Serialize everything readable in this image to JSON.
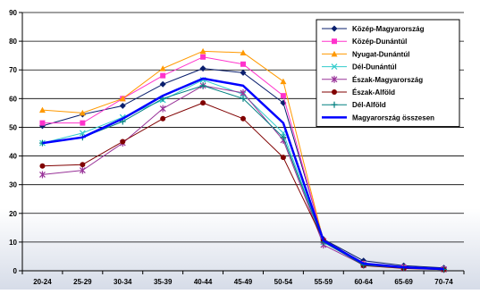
{
  "chart_data": {
    "type": "line",
    "categories": [
      "20-24",
      "25-29",
      "30-34",
      "35-39",
      "40-44",
      "45-49",
      "50-54",
      "55-59",
      "60-64",
      "65-69",
      "70-74"
    ],
    "ylim": [
      0,
      90
    ],
    "yticks": [
      0,
      10,
      20,
      30,
      40,
      50,
      60,
      70,
      80,
      90
    ],
    "grid": true,
    "legend_position": "top-right",
    "series": [
      {
        "name": "Közép-Magyarország",
        "color": "#0a1f6e",
        "marker": "diamond",
        "width": 1,
        "values": [
          50.5,
          54.5,
          57.5,
          65.0,
          70.5,
          69.0,
          58.5,
          11.0,
          3.5,
          1.8,
          1.0
        ]
      },
      {
        "name": "Közép-Dunántúl",
        "color": "#ff33cc",
        "marker": "square",
        "width": 1,
        "values": [
          51.5,
          51.5,
          60.0,
          68.0,
          74.5,
          72.0,
          61.0,
          10.5,
          2.5,
          1.2,
          0.6
        ]
      },
      {
        "name": "Nyugat-Dunántúl",
        "color": "#ff9900",
        "marker": "triangle",
        "width": 1,
        "values": [
          56.0,
          55.0,
          60.0,
          70.5,
          76.5,
          76.0,
          66.0,
          10.5,
          2.5,
          1.2,
          0.6
        ]
      },
      {
        "name": "Dél-Dunántúl",
        "color": "#33cccc",
        "marker": "x",
        "width": 1,
        "values": [
          44.5,
          48.0,
          53.5,
          59.5,
          66.5,
          61.5,
          48.0,
          10.0,
          2.3,
          1.0,
          0.5
        ]
      },
      {
        "name": "Észak-Magyarország",
        "color": "#993399",
        "marker": "star",
        "width": 1,
        "values": [
          33.5,
          35.0,
          44.5,
          56.5,
          64.5,
          62.0,
          45.5,
          9.0,
          2.0,
          1.0,
          0.5
        ]
      },
      {
        "name": "Észak-Alföld",
        "color": "#800000",
        "marker": "circle",
        "width": 1,
        "values": [
          36.5,
          37.0,
          45.0,
          53.0,
          58.5,
          53.0,
          39.5,
          10.5,
          1.8,
          0.8,
          0.4
        ]
      },
      {
        "name": "Dél-Alföld",
        "color": "#008080",
        "marker": "plus",
        "width": 1,
        "values": [
          44.5,
          46.5,
          52.0,
          60.0,
          64.5,
          60.0,
          46.5,
          10.0,
          2.0,
          1.0,
          0.5
        ]
      },
      {
        "name": "Magyarország összesen",
        "color": "#0000ff",
        "marker": "none",
        "width": 2.5,
        "values": [
          44.5,
          46.5,
          53.0,
          61.0,
          67.0,
          64.5,
          51.5,
          10.5,
          2.5,
          1.2,
          0.6
        ]
      }
    ]
  }
}
